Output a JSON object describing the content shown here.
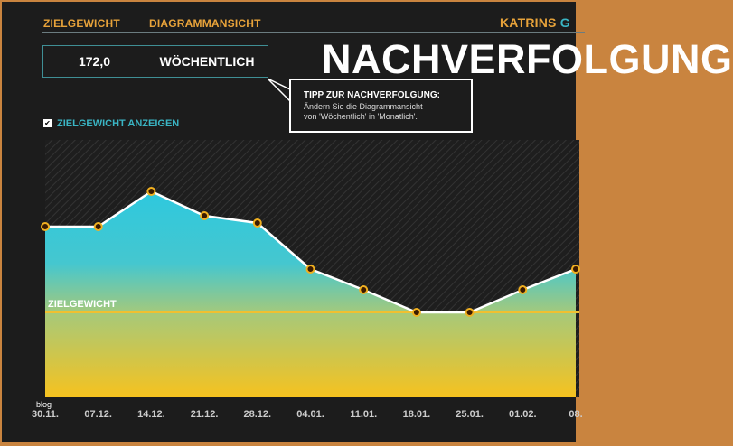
{
  "header": {
    "goal_weight_label": "ZIELGEWICHT",
    "chart_view_label": "DIAGRAMMANSICHT",
    "brand_part1": "KATRINS",
    "brand_part2": "G",
    "title": "NACHVERFOLGUNG"
  },
  "controls": {
    "goal_weight_value": "172,0",
    "chart_view_value": "WÖCHENTLICH",
    "show_goal_checked": true,
    "show_goal_label": "ZIELGEWICHT ANZEIGEN"
  },
  "tooltip": {
    "heading": "TIPP ZUR NACHVERFOLGUNG:",
    "line1": "Ändern Sie die Diagrammansicht",
    "line2": "von 'Wöchentlich' in 'Monatlich'."
  },
  "watermark": "blog",
  "colors": {
    "accent_orange": "#e8a33a",
    "accent_cyan": "#3ab5c4",
    "fill_top": "#2ec8de",
    "fill_bottom": "#f6c21f",
    "goal_line": "#f0c030"
  },
  "chart_data": {
    "type": "area",
    "categories": [
      "30.11.",
      "07.12.",
      "14.12.",
      "21.12.",
      "28.12.",
      "04.01.",
      "11.01.",
      "18.01.",
      "25.01.",
      "01.02.",
      "08."
    ],
    "values": [
      181.5,
      181.5,
      185.4,
      182.7,
      181.9,
      176.8,
      174.5,
      172.0,
      172.0,
      174.5,
      176.8
    ],
    "goal": {
      "label": "ZIELGEWICHT",
      "value": 172.0
    },
    "ylim": [
      162.6,
      191.1
    ],
    "grid": false,
    "legend": "none"
  }
}
